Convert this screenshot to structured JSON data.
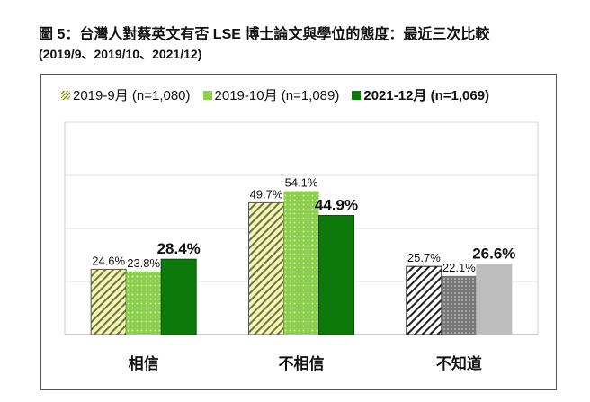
{
  "chart_data": {
    "type": "bar",
    "title": "圖 5：台灣人對蔡英文有否 LSE 博士論文與學位的態度：最近三次比較",
    "subtitle": "(2019/9、2019/10、2021/12)",
    "categories": [
      "相信",
      "不相信",
      "不知道"
    ],
    "series": [
      {
        "name": "2019-9月  (n=1,080)",
        "values": [
          24.6,
          49.7,
          25.7
        ]
      },
      {
        "name": "2019-10月  (n=1,089)",
        "values": [
          23.8,
          54.1,
          22.1
        ]
      },
      {
        "name": "2021-12月  (n=1,069)",
        "values": [
          28.4,
          44.9,
          26.6
        ]
      }
    ],
    "data_labels": [
      [
        "24.6%",
        "49.7%",
        "25.7%"
      ],
      [
        "23.8%",
        "54.1%",
        "22.1%"
      ],
      [
        "28.4%",
        "44.9%",
        "26.6%"
      ]
    ],
    "ylim": [
      0,
      80
    ],
    "y_gridlines": [
      20,
      40,
      60,
      80
    ],
    "grid": true,
    "legend_position": "top",
    "colors": {
      "s1": "#f4f2c0",
      "s1_hatch": "#6b7a2a",
      "s2": "#8ccf4d",
      "s2_dot": "#d8f0b0",
      "s3": "#0b7a0b",
      "s3_border": "#064d06",
      "grey_hatch": "#222222",
      "grey_dot": "#777777",
      "grey_solid": "#bdbdbd"
    }
  }
}
